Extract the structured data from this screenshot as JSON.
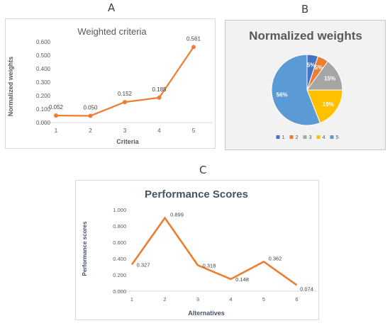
{
  "panels": [
    {
      "letter": "A"
    },
    {
      "letter": "B"
    },
    {
      "letter": "C"
    }
  ],
  "chart_data": [
    {
      "type": "line",
      "title": "Weighted criteria",
      "xlabel": "Criteria",
      "ylabel": "Normalized weights",
      "categories": [
        "1",
        "2",
        "3",
        "4",
        "5"
      ],
      "series": [
        {
          "values": [
            0.052,
            0.05,
            0.152,
            0.185,
            0.561
          ]
        }
      ],
      "data_labels": [
        "0.052",
        "0.050",
        "0.152",
        "0.185",
        "0.561"
      ],
      "yticks": [
        "0.000",
        "0.100",
        "0.200",
        "0.300",
        "0.400",
        "0.500",
        "0.600"
      ],
      "ylim": [
        0,
        0.6
      ],
      "grid": false,
      "color": "#ed7d31"
    },
    {
      "type": "pie",
      "title": "Normalized weights",
      "categories": [
        "1",
        "2",
        "3",
        "4",
        "5"
      ],
      "values": [
        5,
        5,
        15,
        19,
        56
      ],
      "slice_labels": [
        "5%",
        "5%",
        "15%",
        "19%",
        "56%"
      ],
      "colors": [
        "#4472c4",
        "#ed7d31",
        "#a5a5a5",
        "#ffc000",
        "#5b9bd5"
      ],
      "legend": "bottom"
    },
    {
      "type": "line",
      "title": "Performance Scores",
      "xlabel": "Alternatives",
      "ylabel": "Performance scores",
      "categories": [
        "1",
        "2",
        "3",
        "4",
        "5",
        "6"
      ],
      "series": [
        {
          "values": [
            0.327,
            0.899,
            0.318,
            0.148,
            0.362,
            0.074
          ]
        }
      ],
      "data_labels": [
        "0.327",
        "0.899",
        "0.318",
        "0.148",
        "0.362",
        "0.074"
      ],
      "yticks": [
        "0.000",
        "0.200",
        "0.400",
        "0.600",
        "0.800",
        "1.000"
      ],
      "ylim": [
        0,
        1
      ],
      "grid": false,
      "title_color": "#44546a",
      "color": "#ed7d31"
    }
  ]
}
